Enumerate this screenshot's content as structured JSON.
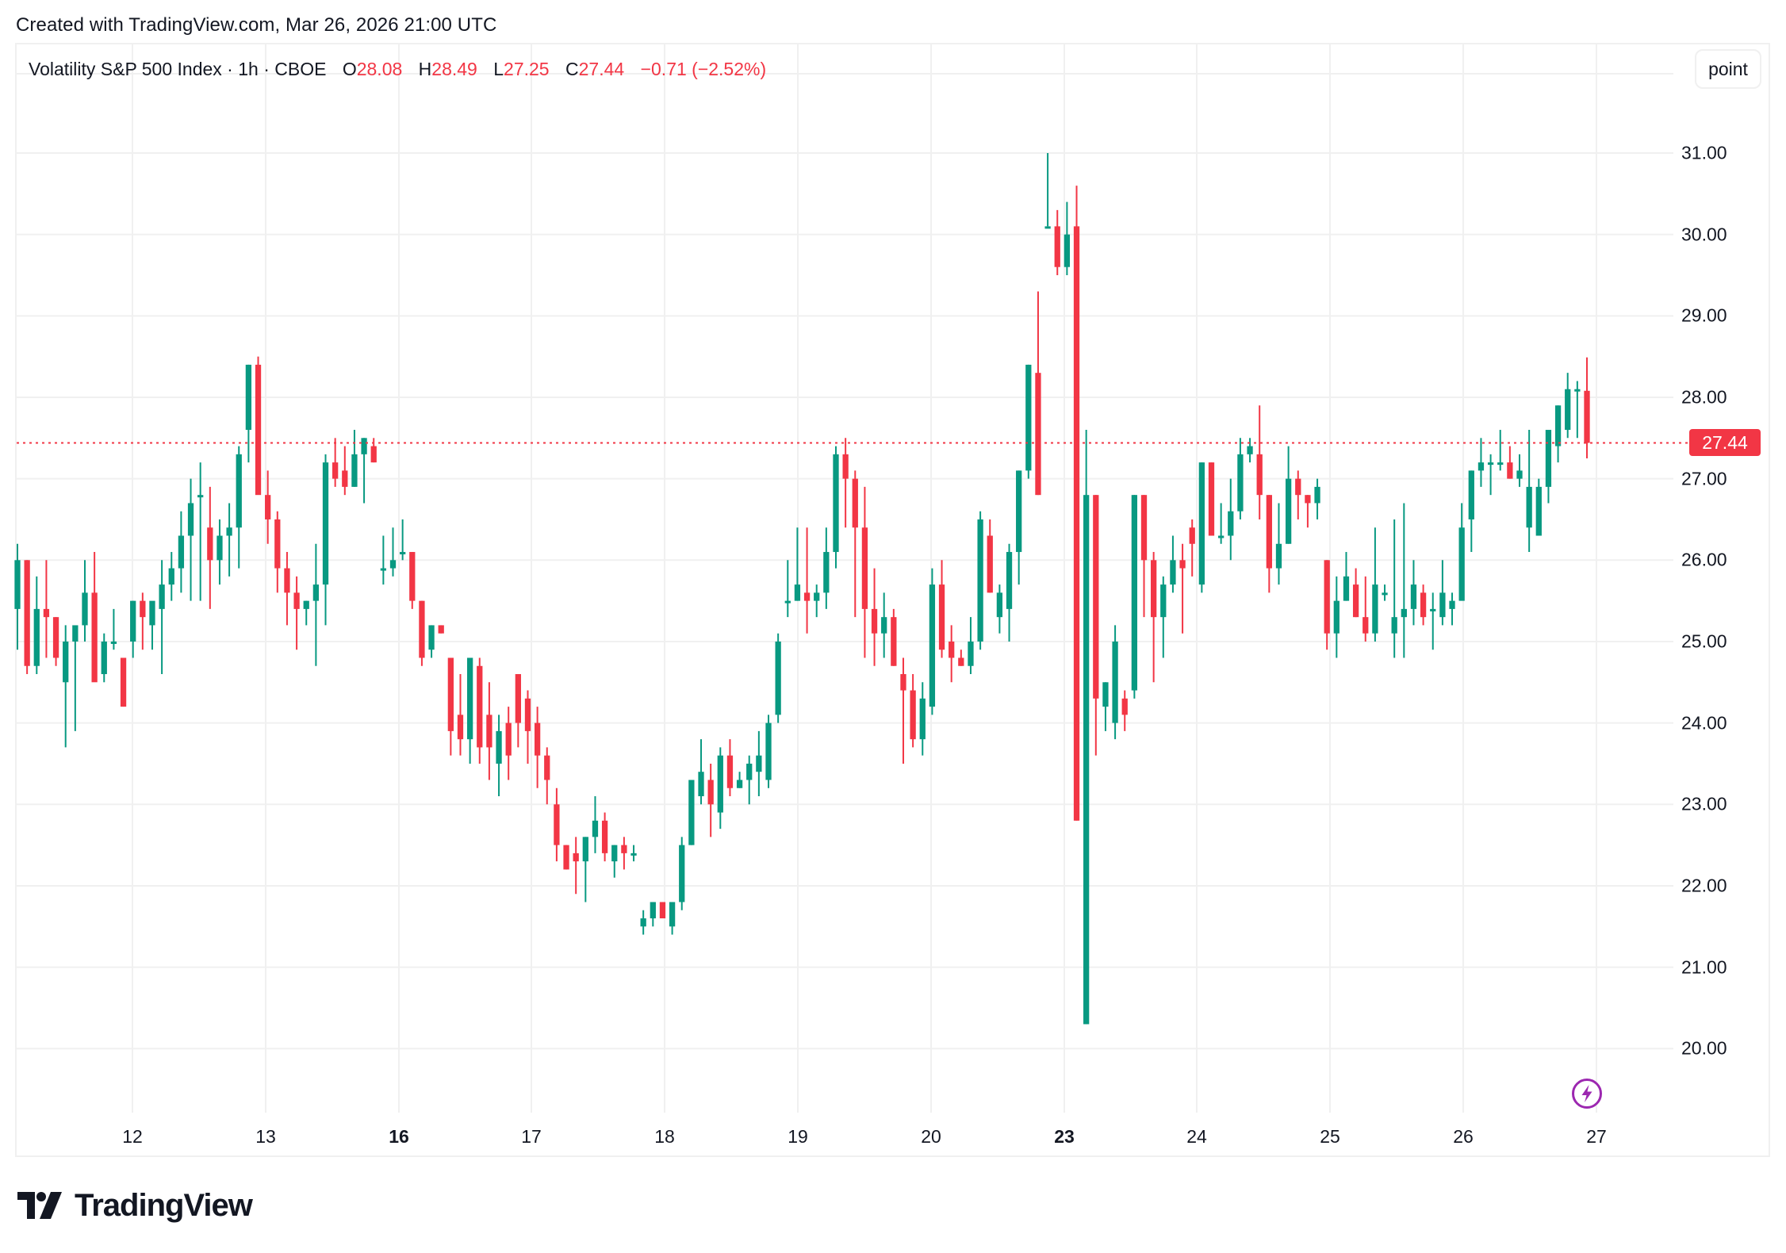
{
  "header": {
    "created_text": "Created with TradingView.com, Mar 26, 2026 21:00 UTC"
  },
  "legend": {
    "symbol": "Volatility S&P 500 Index · 1h · CBOE",
    "open_label": "O",
    "open": "28.08",
    "high_label": "H",
    "high": "28.49",
    "low_label": "L",
    "low": "27.25",
    "close_label": "C",
    "close": "27.44",
    "change": "−0.71 (−2.52%)"
  },
  "price_axis": {
    "unit_button": "point",
    "last_price": "27.44",
    "labels": [
      "31.00",
      "30.00",
      "29.00",
      "28.00",
      "27.00",
      "26.00",
      "25.00",
      "24.00",
      "23.00",
      "22.00",
      "21.00",
      "20.00"
    ]
  },
  "time_axis": {
    "labels": [
      {
        "text": "12",
        "bold": false
      },
      {
        "text": "13",
        "bold": false
      },
      {
        "text": "16",
        "bold": true
      },
      {
        "text": "17",
        "bold": false
      },
      {
        "text": "18",
        "bold": false
      },
      {
        "text": "19",
        "bold": false
      },
      {
        "text": "20",
        "bold": false
      },
      {
        "text": "23",
        "bold": true
      },
      {
        "text": "24",
        "bold": false
      },
      {
        "text": "25",
        "bold": false
      },
      {
        "text": "26",
        "bold": false
      },
      {
        "text": "27",
        "bold": false
      }
    ]
  },
  "icons": {
    "bolt": "lightning-bolt-icon"
  },
  "branding": {
    "logo_text": "TradingView"
  },
  "colors": {
    "up": "#089981",
    "down": "#f23645",
    "grid": "#f0f0f0",
    "bolt": "#9c27b0"
  },
  "chart_data": {
    "type": "candlestick",
    "title": "Volatility S&P 500 Index · 1h · CBOE",
    "xlabel": "",
    "ylabel": "point",
    "ylim": [
      19.0,
      31.6
    ],
    "grid": true,
    "last_price": 27.44,
    "x_ticks": [
      "12",
      "13",
      "16",
      "17",
      "18",
      "19",
      "20",
      "23",
      "24",
      "25",
      "26",
      "27"
    ],
    "y_ticks": [
      20,
      21,
      22,
      23,
      24,
      25,
      26,
      27,
      28,
      29,
      30,
      31
    ],
    "candles": [
      [
        25.4,
        26.2,
        24.9,
        26.0
      ],
      [
        26.0,
        26.0,
        24.6,
        24.7
      ],
      [
        24.7,
        25.8,
        24.6,
        25.4
      ],
      [
        25.4,
        26.0,
        24.8,
        25.3
      ],
      [
        25.3,
        25.3,
        24.7,
        24.8
      ],
      [
        24.5,
        25.2,
        23.7,
        25.0
      ],
      [
        25.0,
        25.1,
        23.9,
        25.2
      ],
      [
        25.2,
        26.0,
        25.0,
        25.6
      ],
      [
        25.6,
        26.1,
        24.8,
        24.5
      ],
      [
        24.6,
        25.1,
        24.5,
        25.0
      ],
      [
        25.0,
        25.4,
        24.9,
        25.0
      ],
      [
        24.8,
        24.8,
        24.2,
        24.2
      ],
      [
        25.0,
        25.5,
        24.8,
        25.5
      ],
      [
        25.5,
        25.6,
        24.9,
        25.3
      ],
      [
        25.2,
        25.4,
        24.9,
        25.5
      ],
      [
        25.4,
        26.0,
        24.6,
        25.7
      ],
      [
        25.7,
        26.1,
        25.5,
        25.9
      ],
      [
        25.9,
        26.6,
        25.6,
        26.3
      ],
      [
        26.3,
        27.0,
        25.5,
        26.7
      ],
      [
        26.8,
        27.2,
        25.5,
        26.8
      ],
      [
        26.4,
        26.9,
        25.4,
        26.0
      ],
      [
        26.0,
        26.5,
        25.7,
        26.3
      ],
      [
        26.3,
        26.7,
        25.8,
        26.4
      ],
      [
        26.4,
        27.4,
        25.9,
        27.3
      ],
      [
        27.6,
        28.4,
        27.2,
        28.4
      ],
      [
        28.4,
        28.5,
        26.9,
        26.8
      ],
      [
        26.8,
        27.1,
        26.2,
        26.5
      ],
      [
        26.5,
        26.6,
        25.6,
        25.9
      ],
      [
        25.9,
        26.1,
        25.2,
        25.6
      ],
      [
        25.6,
        25.8,
        24.9,
        25.4
      ],
      [
        25.4,
        25.5,
        25.2,
        25.5
      ],
      [
        25.5,
        26.2,
        24.7,
        25.7
      ],
      [
        25.7,
        27.3,
        25.2,
        27.2
      ],
      [
        27.2,
        27.5,
        26.9,
        27.0
      ],
      [
        27.1,
        27.4,
        26.8,
        26.9
      ],
      [
        26.9,
        27.6,
        26.9,
        27.3
      ],
      [
        27.3,
        27.5,
        26.7,
        27.5
      ],
      [
        27.4,
        27.5,
        27.2,
        27.2
      ],
      [
        25.9,
        26.3,
        25.7,
        25.9
      ],
      [
        25.9,
        26.4,
        25.8,
        26.0
      ],
      [
        26.1,
        26.5,
        26.0,
        26.1
      ],
      [
        26.1,
        26.1,
        25.4,
        25.5
      ],
      [
        25.5,
        25.5,
        24.7,
        24.8
      ],
      [
        24.9,
        25.2,
        24.8,
        25.2
      ],
      [
        25.2,
        25.2,
        25.1,
        25.1
      ],
      [
        24.8,
        24.8,
        23.6,
        23.9
      ],
      [
        24.1,
        24.6,
        23.6,
        23.8
      ],
      [
        23.8,
        24.8,
        23.5,
        24.8
      ],
      [
        24.7,
        24.8,
        23.5,
        23.7
      ],
      [
        24.1,
        24.5,
        23.3,
        23.7
      ],
      [
        23.5,
        24.1,
        23.1,
        23.9
      ],
      [
        24.0,
        24.2,
        23.3,
        23.6
      ],
      [
        24.6,
        24.6,
        23.7,
        24.0
      ],
      [
        24.3,
        24.4,
        23.5,
        23.9
      ],
      [
        24.0,
        24.2,
        23.2,
        23.6
      ],
      [
        23.6,
        23.7,
        23.0,
        23.3
      ],
      [
        23.0,
        23.2,
        22.3,
        22.5
      ],
      [
        22.5,
        22.5,
        22.2,
        22.2
      ],
      [
        22.4,
        22.6,
        21.9,
        22.3
      ],
      [
        22.3,
        22.6,
        21.8,
        22.6
      ],
      [
        22.6,
        23.1,
        22.4,
        22.8
      ],
      [
        22.8,
        22.9,
        22.3,
        22.4
      ],
      [
        22.3,
        22.5,
        22.1,
        22.5
      ],
      [
        22.5,
        22.6,
        22.2,
        22.4
      ],
      [
        22.4,
        22.5,
        22.3,
        22.4
      ],
      [
        21.5,
        21.7,
        21.4,
        21.6
      ],
      [
        21.6,
        21.8,
        21.5,
        21.8
      ],
      [
        21.8,
        21.8,
        21.6,
        21.6
      ],
      [
        21.5,
        21.8,
        21.4,
        21.8
      ],
      [
        21.8,
        22.6,
        21.7,
        22.5
      ],
      [
        22.5,
        23.3,
        22.5,
        23.3
      ],
      [
        23.1,
        23.8,
        23.0,
        23.4
      ],
      [
        23.3,
        23.5,
        22.6,
        23.0
      ],
      [
        22.9,
        23.7,
        22.7,
        23.6
      ],
      [
        23.6,
        23.8,
        23.1,
        23.2
      ],
      [
        23.2,
        23.4,
        23.2,
        23.3
      ],
      [
        23.3,
        23.6,
        23.0,
        23.5
      ],
      [
        23.4,
        23.9,
        23.1,
        23.6
      ],
      [
        23.3,
        24.1,
        23.2,
        24.0
      ],
      [
        24.1,
        25.1,
        24.0,
        25.0
      ],
      [
        25.5,
        26.0,
        25.3,
        25.5
      ],
      [
        25.5,
        26.4,
        25.5,
        25.7
      ],
      [
        25.6,
        26.4,
        25.1,
        25.5
      ],
      [
        25.5,
        25.7,
        25.3,
        25.6
      ],
      [
        25.6,
        26.4,
        25.4,
        26.1
      ],
      [
        26.1,
        27.4,
        25.9,
        27.3
      ],
      [
        27.3,
        27.5,
        26.4,
        27.0
      ],
      [
        27.0,
        27.1,
        25.3,
        26.4
      ],
      [
        26.4,
        26.9,
        24.8,
        25.4
      ],
      [
        25.4,
        25.9,
        24.7,
        25.1
      ],
      [
        25.1,
        25.6,
        24.8,
        25.3
      ],
      [
        25.3,
        25.4,
        24.7,
        24.7
      ],
      [
        24.6,
        24.8,
        23.5,
        24.4
      ],
      [
        24.4,
        24.6,
        23.7,
        23.8
      ],
      [
        23.8,
        24.5,
        23.6,
        24.3
      ],
      [
        24.2,
        25.9,
        24.1,
        25.7
      ],
      [
        25.7,
        26.0,
        24.8,
        24.9
      ],
      [
        25.0,
        25.2,
        24.5,
        24.8
      ],
      [
        24.8,
        24.9,
        24.7,
        24.7
      ],
      [
        24.7,
        25.3,
        24.6,
        25.0
      ],
      [
        25.0,
        26.6,
        24.9,
        26.5
      ],
      [
        26.3,
        26.5,
        25.6,
        25.6
      ],
      [
        25.3,
        25.7,
        25.1,
        25.6
      ],
      [
        25.4,
        26.2,
        25.0,
        26.1
      ],
      [
        26.1,
        27.1,
        25.7,
        27.1
      ],
      [
        27.1,
        28.4,
        27.0,
        28.4
      ],
      [
        28.3,
        29.3,
        26.8,
        26.8
      ],
      [
        30.1,
        31.0,
        30.1,
        30.1
      ],
      [
        30.1,
        30.3,
        29.5,
        29.6
      ],
      [
        29.6,
        30.4,
        29.5,
        30.0
      ],
      [
        30.1,
        30.6,
        22.8,
        22.8
      ],
      [
        20.3,
        27.6,
        20.3,
        26.8
      ],
      [
        26.8,
        26.8,
        23.6,
        24.3
      ],
      [
        24.2,
        24.5,
        23.9,
        24.5
      ],
      [
        24.0,
        25.2,
        23.8,
        25.0
      ],
      [
        24.3,
        24.4,
        23.9,
        24.1
      ],
      [
        24.4,
        26.8,
        24.3,
        26.8
      ],
      [
        26.8,
        26.8,
        25.3,
        26.0
      ],
      [
        26.0,
        26.1,
        24.5,
        25.3
      ],
      [
        25.3,
        25.8,
        24.8,
        25.7
      ],
      [
        25.7,
        26.3,
        25.6,
        26.0
      ],
      [
        26.0,
        26.2,
        25.1,
        25.9
      ],
      [
        26.4,
        26.5,
        25.8,
        26.2
      ],
      [
        25.7,
        27.2,
        25.6,
        27.2
      ],
      [
        27.2,
        27.2,
        26.3,
        26.3
      ],
      [
        26.3,
        26.7,
        26.2,
        26.3
      ],
      [
        26.3,
        27.0,
        26.0,
        26.6
      ],
      [
        26.6,
        27.5,
        26.5,
        27.3
      ],
      [
        27.3,
        27.5,
        27.2,
        27.4
      ],
      [
        27.3,
        27.9,
        26.5,
        26.8
      ],
      [
        26.8,
        26.8,
        25.6,
        25.9
      ],
      [
        25.9,
        26.7,
        25.7,
        26.2
      ],
      [
        26.2,
        27.4,
        26.2,
        27.0
      ],
      [
        27.0,
        27.1,
        26.5,
        26.8
      ],
      [
        26.8,
        26.8,
        26.4,
        26.7
      ],
      [
        26.7,
        27.0,
        26.5,
        26.9
      ],
      [
        26.0,
        26.0,
        24.9,
        25.1
      ],
      [
        25.1,
        25.8,
        24.8,
        25.5
      ],
      [
        25.5,
        26.1,
        25.5,
        25.8
      ],
      [
        25.7,
        25.9,
        25.3,
        25.3
      ],
      [
        25.3,
        25.8,
        25.0,
        25.1
      ],
      [
        25.1,
        26.4,
        25.0,
        25.7
      ],
      [
        25.6,
        25.7,
        25.5,
        25.6
      ],
      [
        25.1,
        26.5,
        24.8,
        25.3
      ],
      [
        25.3,
        26.7,
        24.8,
        25.4
      ],
      [
        25.4,
        26.0,
        25.2,
        25.7
      ],
      [
        25.6,
        25.7,
        25.2,
        25.3
      ],
      [
        25.4,
        25.6,
        24.9,
        25.4
      ],
      [
        25.3,
        26.0,
        25.2,
        25.6
      ],
      [
        25.4,
        25.6,
        25.2,
        25.5
      ],
      [
        25.5,
        26.7,
        26.3,
        26.4
      ],
      [
        26.5,
        27.1,
        26.1,
        27.1
      ],
      [
        27.1,
        27.5,
        26.9,
        27.2
      ],
      [
        27.2,
        27.3,
        26.8,
        27.2
      ],
      [
        27.2,
        27.6,
        27.1,
        27.2
      ],
      [
        27.2,
        27.4,
        27.0,
        27.0
      ],
      [
        27.0,
        27.3,
        26.9,
        27.1
      ],
      [
        26.4,
        27.6,
        26.1,
        26.9
      ],
      [
        26.3,
        27.0,
        26.3,
        26.9
      ],
      [
        26.9,
        27.4,
        26.7,
        27.6
      ],
      [
        27.4,
        27.9,
        27.2,
        27.9
      ],
      [
        27.6,
        28.3,
        27.5,
        28.1
      ],
      [
        28.1,
        28.2,
        27.5,
        28.1
      ],
      [
        28.08,
        28.49,
        27.25,
        27.44
      ]
    ]
  }
}
